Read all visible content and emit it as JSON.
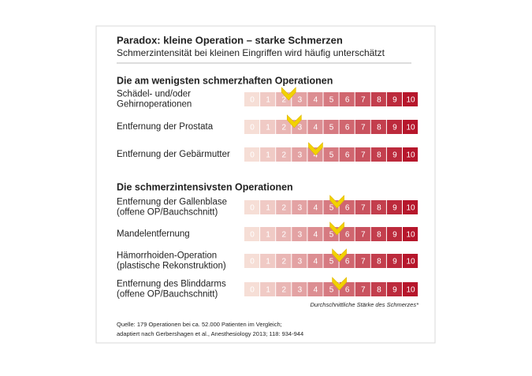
{
  "title": "Paradox: kleine Operation – starke Schmerzen",
  "subtitle": "Schmerzintensität bei kleinen Eingriffen wird häufig unterschätzt",
  "scale": [
    0,
    1,
    2,
    3,
    4,
    5,
    6,
    7,
    8,
    9,
    10
  ],
  "sections": [
    {
      "heading": "Die am wenigsten schmerzhaften Operationen",
      "items": [
        {
          "label": [
            "Schädel- und/oder",
            "Gehirnoperationen"
          ],
          "value": 2.3
        },
        {
          "label": [
            "Entfernung der Prostata"
          ],
          "value": 2.65
        },
        {
          "label": [
            "Entfernung der Gebärmutter"
          ],
          "value": 4.0
        }
      ]
    },
    {
      "heading": "Die schmerzintensivsten Operationen",
      "items": [
        {
          "label": [
            "Entfernung der Gallenblase",
            "(offene OP/Bauchschnitt)"
          ],
          "value": 5.35
        },
        {
          "label": [
            "Mandelentfernung"
          ],
          "value": 5.35
        },
        {
          "label": [
            "Hämorrhoiden-Operation",
            "(plastische Rekonstruktion)"
          ],
          "value": 5.5
        },
        {
          "label": [
            "Entfernung des Blinddarms",
            "(offene OP/Bauchschnitt)"
          ],
          "value": 5.5
        }
      ]
    }
  ],
  "scale_label": "Durchschnittliche Stärke des Schmerzes*",
  "source": [
    "Quelle: 179 Operationen bei ca. 52.000 Patienten im Vergleich;",
    "adaptiert nach Gerbershagen et al., Anesthesiology 2013; 118: 934-944"
  ]
}
